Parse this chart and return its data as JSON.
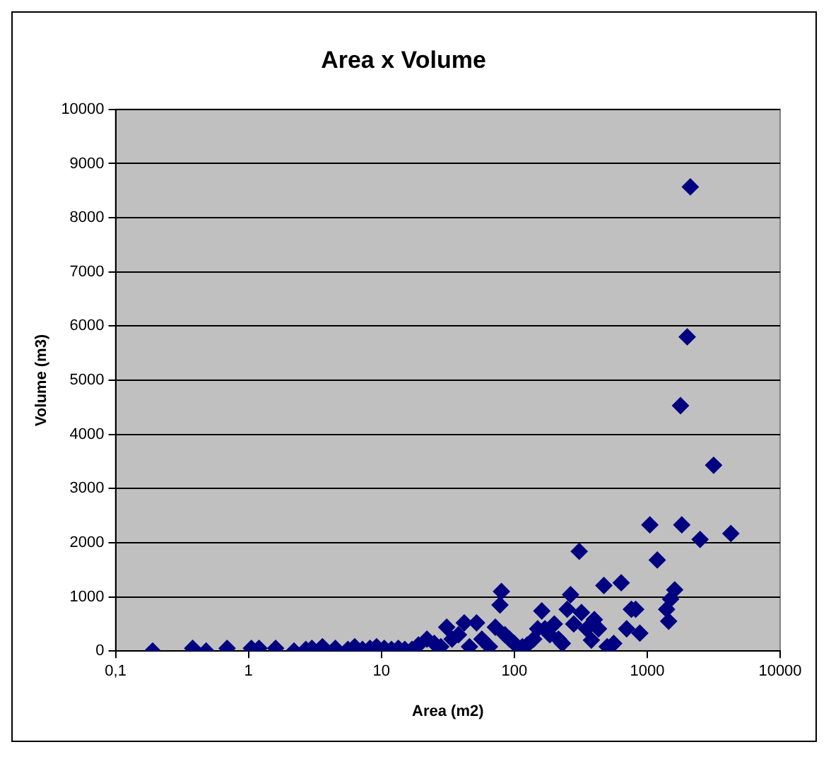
{
  "chart_data": {
    "type": "scatter",
    "title": "Area x Volume",
    "xlabel": "Area (m2)",
    "ylabel": "Volume (m3)",
    "log": "x",
    "grid": "y",
    "marker": "diamond",
    "legend": false,
    "xlim": [
      0.1,
      10000
    ],
    "xticks": [
      {
        "value": 0.1,
        "label": "0,1"
      },
      1,
      10,
      100,
      1000,
      10000
    ],
    "ylim": [
      0,
      10000
    ],
    "yticks": [
      0,
      1000,
      2000,
      3000,
      4000,
      5000,
      6000,
      7000,
      8000,
      9000,
      10000
    ],
    "series": [
      {
        "color": "#000080",
        "x": [
          0.19,
          0.38,
          0.48,
          0.69,
          1.05,
          1.2,
          1.6,
          2.2,
          2.7,
          3.0,
          3.6,
          4.5,
          5.6,
          6.3,
          7.2,
          8.2,
          9.2,
          10.5,
          11.9,
          13.4,
          15,
          17,
          19,
          22,
          25,
          28,
          31,
          34,
          38,
          42,
          46,
          52,
          57,
          65,
          72,
          78,
          80,
          85,
          92,
          100,
          115,
          125,
          140,
          150,
          161,
          170,
          185,
          200,
          215,
          230,
          250,
          265,
          280,
          308,
          320,
          350,
          380,
          400,
          430,
          472,
          500,
          560,
          637,
          700,
          760,
          819,
          880,
          1047,
          1190,
          1610,
          1500,
          1400,
          1450,
          1820,
          1780,
          2000,
          2110,
          3160,
          2500,
          4260
        ],
        "values": [
          0,
          50,
          0,
          50,
          50,
          50,
          50,
          0,
          30,
          50,
          80,
          50,
          30,
          80,
          30,
          50,
          80,
          50,
          30,
          50,
          30,
          30,
          110,
          220,
          140,
          80,
          440,
          220,
          300,
          520,
          80,
          520,
          220,
          80,
          440,
          850,
          1100,
          300,
          220,
          140,
          80,
          110,
          220,
          410,
          740,
          410,
          300,
          500,
          220,
          140,
          770,
          1040,
          500,
          1840,
          710,
          410,
          200,
          580,
          410,
          1210,
          80,
          140,
          1260,
          410,
          770,
          770,
          330,
          2330,
          1680,
          1130,
          960,
          770,
          550,
          2330,
          4530,
          5800,
          8570,
          3430,
          2060,
          2170
        ]
      }
    ]
  }
}
